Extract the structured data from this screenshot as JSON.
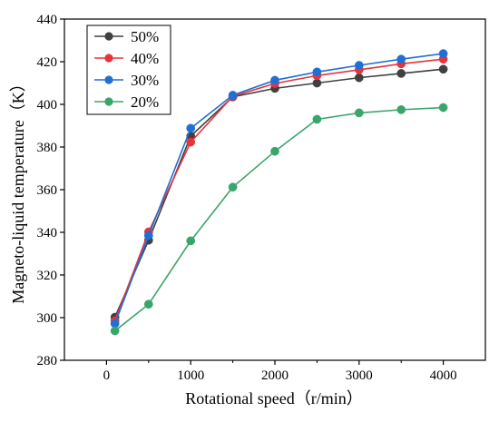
{
  "chart_data": {
    "type": "line",
    "xlabel": "Rotational speed（r/min）",
    "ylabel": "Magneto-liquid temperature（K）",
    "xlim": [
      -500,
      4500
    ],
    "ylim": [
      280,
      440
    ],
    "x_ticks": [
      0,
      1000,
      2000,
      3000,
      4000
    ],
    "y_ticks": [
      280,
      300,
      320,
      340,
      360,
      380,
      400,
      420,
      440
    ],
    "x": [
      100,
      500,
      1000,
      1500,
      2000,
      2500,
      3000,
      3500,
      4000
    ],
    "grid": false,
    "legend_position": "top-left",
    "series": [
      {
        "name": "50%",
        "color": "#404040",
        "values": [
          300.2,
          336.3,
          385.1,
          403.5,
          407.5,
          410.0,
          412.5,
          414.5,
          416.5
        ]
      },
      {
        "name": "40%",
        "color": "#e8333a",
        "values": [
          298.5,
          340.2,
          382.3,
          403.8,
          409.8,
          413.5,
          416.2,
          419.0,
          421.2
        ]
      },
      {
        "name": "30%",
        "color": "#1f6fd6",
        "values": [
          297.2,
          338.5,
          388.8,
          404.3,
          411.3,
          415.2,
          418.3,
          421.2,
          423.8
        ]
      },
      {
        "name": "20%",
        "color": "#3aa56b",
        "values": [
          293.8,
          306.3,
          336.0,
          361.2,
          378.0,
          393.0,
          396.0,
          397.5,
          398.5
        ]
      }
    ]
  }
}
